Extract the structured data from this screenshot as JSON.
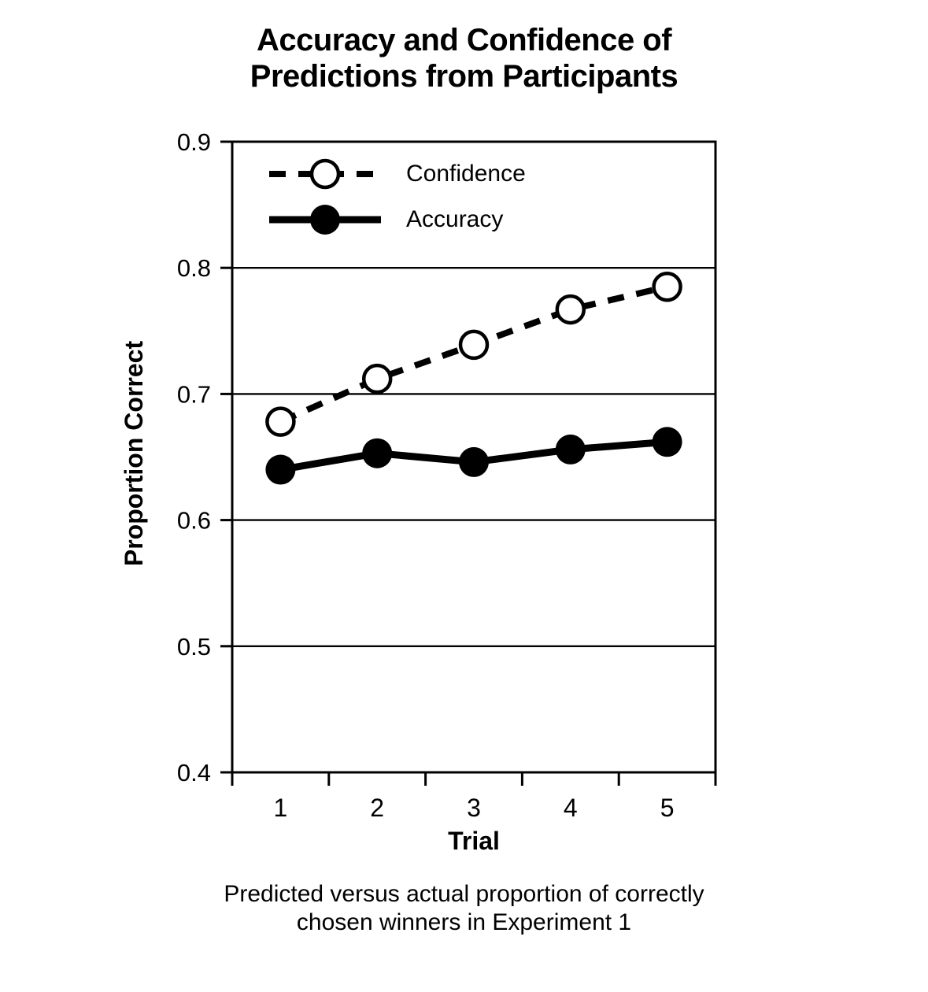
{
  "figure": {
    "title": "Accuracy and Confidence of\nPredictions from Participants",
    "caption": "Predicted versus actual proportion of correctly\nchosen winners in Experiment 1"
  },
  "chart_data": {
    "type": "line",
    "title": "Accuracy and Confidence of Predictions from Participants",
    "xlabel": "Trial",
    "ylabel": "Proportion Correct",
    "x": [
      1,
      2,
      3,
      4,
      5
    ],
    "xtick_labels": [
      "1",
      "2",
      "3",
      "4",
      "5"
    ],
    "ylim": [
      0.4,
      0.9
    ],
    "yticks": [
      0.9,
      0.8,
      0.7,
      0.6,
      0.5,
      0.4
    ],
    "ytick_labels": [
      "0.9",
      "0.8",
      "0.7",
      "0.6",
      "0.5",
      "0.4"
    ],
    "grid": "horizontal-only",
    "legend_position": "inside-top-left",
    "series": [
      {
        "name": "Confidence",
        "line_style": "dashed",
        "marker": "open-circle",
        "values": [
          0.678,
          0.712,
          0.739,
          0.767,
          0.785
        ]
      },
      {
        "name": "Accuracy",
        "line_style": "solid",
        "marker": "filled-circle",
        "values": [
          0.64,
          0.653,
          0.646,
          0.656,
          0.662
        ]
      }
    ],
    "line_color": "#000000",
    "background_color": "#ffffff"
  }
}
